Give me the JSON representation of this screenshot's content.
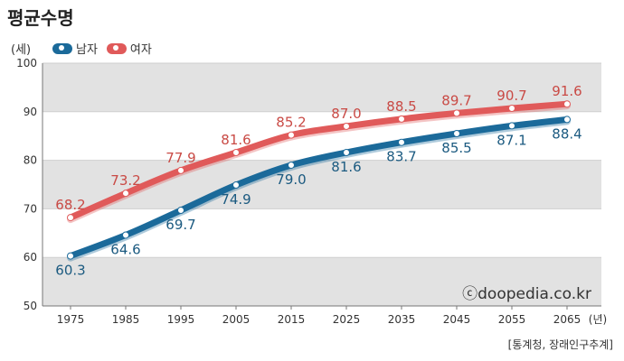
{
  "chart_data": {
    "type": "line",
    "title": "평균수명",
    "ylabel": "(세)",
    "xlabel": "(년)",
    "categories": [
      "1975",
      "1985",
      "1995",
      "2005",
      "2015",
      "2025",
      "2035",
      "2045",
      "2055",
      "2065"
    ],
    "ylim": [
      50,
      100
    ],
    "yticks": [
      50,
      60,
      70,
      80,
      90,
      100
    ],
    "legend_position": "top-left",
    "series": [
      {
        "name": "남자",
        "color": "#1b6a9a",
        "label_color": "#1b5a80",
        "values": [
          60.3,
          64.6,
          69.7,
          74.9,
          79.0,
          81.6,
          83.7,
          85.5,
          87.1,
          88.4
        ],
        "labels": [
          "60.3",
          "64.6",
          "69.7",
          "74.9",
          "79.0",
          "81.6",
          "83.7",
          "85.5",
          "87.1",
          "88.4"
        ]
      },
      {
        "name": "여자",
        "color": "#e05a5a",
        "label_color": "#c94a45",
        "values": [
          68.2,
          73.2,
          77.9,
          81.6,
          85.2,
          87.0,
          88.5,
          89.7,
          90.7,
          91.6
        ],
        "labels": [
          "68.2",
          "73.2",
          "77.9",
          "81.6",
          "85.2",
          "87.0",
          "88.5",
          "89.7",
          "90.7",
          "91.6"
        ]
      }
    ]
  },
  "watermark": "ⓒdoopedia.co.kr",
  "source": "[통계청, 장래인구추계]"
}
